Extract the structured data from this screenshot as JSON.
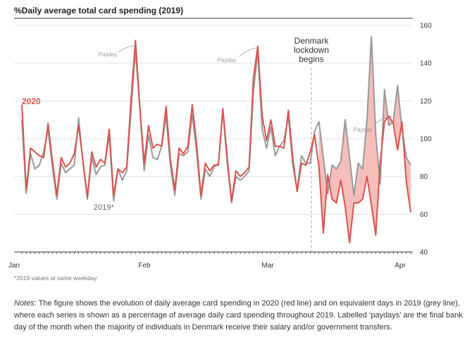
{
  "chart_data": {
    "type": "line",
    "title": "%Daily average total card spending (2019)",
    "xlabel": "",
    "ylabel": "",
    "ylim": [
      40,
      160
    ],
    "yticks": [
      "40",
      "60",
      "80",
      "100",
      "120",
      "140",
      "160"
    ],
    "x_month_labels": [
      "Jan",
      "Feb",
      "Mar",
      "Apr"
    ],
    "grid": "horizontal",
    "shading": "area between series where 2019 exceeds 2020 (after lockdown)",
    "colors": {
      "series_2020": "#d9534f",
      "series_2019": "#999999",
      "shade": "#f4b3ae"
    },
    "series": [
      {
        "name": "2020",
        "values": [
          118,
          73,
          95,
          93,
          91,
          90,
          108,
          88,
          70,
          90,
          85,
          87,
          92,
          107,
          88,
          69,
          93,
          85,
          89,
          87,
          105,
          70,
          84,
          82,
          85,
          121,
          152,
          117,
          87,
          107,
          95,
          97,
          96,
          117,
          89,
          73,
          95,
          92,
          96,
          118,
          97,
          70,
          87,
          83,
          86,
          86,
          116,
          90,
          67,
          83,
          80,
          82,
          85,
          132,
          149,
          112,
          99,
          110,
          96,
          96,
          95,
          115,
          90,
          72,
          87,
          86,
          93,
          102,
          85,
          50,
          81,
          68,
          66,
          78,
          64,
          45,
          66,
          66,
          68,
          80,
          65,
          49,
          87,
          109,
          112,
          108,
          94,
          109,
          77,
          61
        ]
      },
      {
        "name": "2019",
        "values": [
          110,
          71,
          92,
          84,
          86,
          93,
          105,
          85,
          68,
          87,
          82,
          84,
          86,
          111,
          87,
          68,
          90,
          81,
          85,
          86,
          102,
          67,
          84,
          78,
          83,
          115,
          147,
          116,
          83,
          102,
          90,
          89,
          96,
          112,
          86,
          70,
          92,
          91,
          93,
          113,
          93,
          68,
          84,
          80,
          85,
          87,
          115,
          87,
          66,
          80,
          78,
          80,
          83,
          125,
          146,
          105,
          95,
          106,
          91,
          96,
          99,
          112,
          86,
          73,
          91,
          87,
          87,
          104,
          109,
          90,
          71,
          86,
          84,
          88,
          110,
          90,
          70,
          87,
          84,
          110,
          154,
          102,
          76,
          126,
          107,
          109,
          128,
          105,
          90,
          86
        ]
      }
    ],
    "annotations": [
      {
        "text": "Payday",
        "x_index": 26,
        "y": 152
      },
      {
        "text": "Payday",
        "x_index": 54,
        "y": 149
      },
      {
        "text": "Payday",
        "x_index": 84,
        "y": 112
      },
      {
        "text": "Denmark lockdown begins",
        "x_index": 68
      }
    ],
    "series_labels": [
      "2020",
      "2019*"
    ],
    "footnote": "*2019 values at same weekday"
  },
  "annotation_lines": {
    "lockdown_line1": "Denmark",
    "lockdown_line2": "lockdown",
    "lockdown_line3": "begins",
    "payday": "Payday"
  },
  "notes": {
    "prefix": "Notes:",
    "body": " The figure shows the evolution of daily average card spending in 2020 (red line) and on equivalent days in 2019 (grey line), where each series is shown as a percentage of average daily card spending throughout 2019. Labelled ‘paydays’ are the final bank day of the month when the majority of individuals in Denmark receive their salary and/or government transfers."
  }
}
